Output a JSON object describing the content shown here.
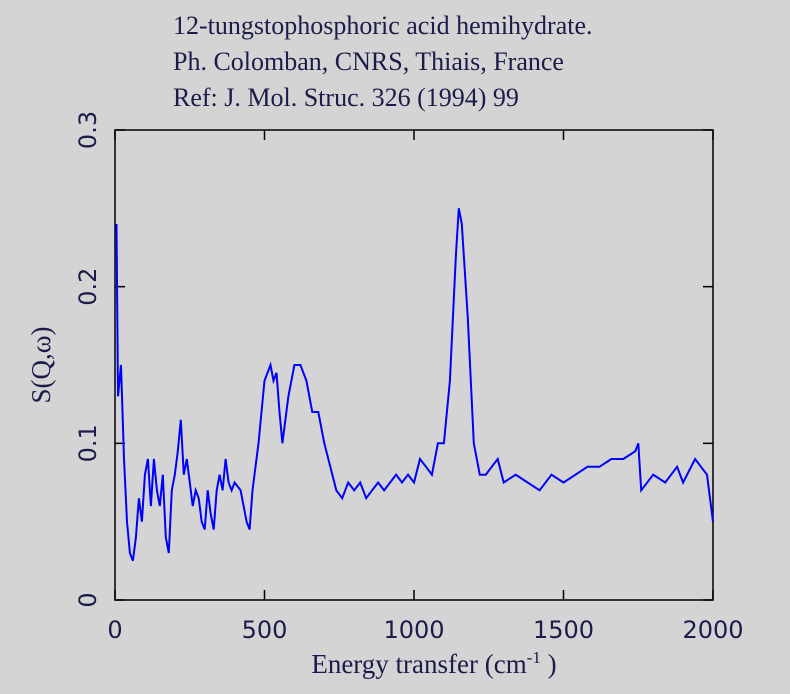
{
  "chart_data": {
    "type": "line",
    "title": [
      "12-tungstophosphoric acid hemihydrate.",
      "Ph. Colomban, CNRS, Thiais, France",
      "Ref: J. Mol. Struc. 326 (1994) 99"
    ],
    "xlabel": [
      "Energy transfer (cm",
      "-1",
      " )"
    ],
    "ylabel": "S(Q,ω)",
    "x": [
      5,
      10,
      20,
      30,
      40,
      50,
      60,
      70,
      80,
      90,
      100,
      110,
      120,
      130,
      140,
      150,
      160,
      170,
      180,
      190,
      200,
      210,
      220,
      230,
      240,
      250,
      260,
      270,
      280,
      290,
      300,
      310,
      320,
      330,
      340,
      350,
      360,
      370,
      380,
      390,
      400,
      420,
      440,
      450,
      460,
      480,
      500,
      520,
      530,
      540,
      550,
      560,
      580,
      600,
      620,
      640,
      660,
      680,
      700,
      720,
      740,
      760,
      780,
      800,
      820,
      840,
      860,
      880,
      900,
      920,
      940,
      960,
      980,
      1000,
      1020,
      1040,
      1060,
      1080,
      1100,
      1120,
      1140,
      1150,
      1160,
      1180,
      1200,
      1220,
      1240,
      1260,
      1280,
      1300,
      1340,
      1380,
      1420,
      1460,
      1500,
      1540,
      1580,
      1620,
      1660,
      1700,
      1740,
      1750,
      1760,
      1800,
      1840,
      1880,
      1900,
      1940,
      1960,
      1980,
      2000
    ],
    "series": [
      {
        "name": "S(Q,ω)",
        "color": "#0000ff",
        "values": [
          0.24,
          0.13,
          0.15,
          0.09,
          0.05,
          0.03,
          0.025,
          0.04,
          0.065,
          0.05,
          0.08,
          0.09,
          0.06,
          0.09,
          0.07,
          0.06,
          0.08,
          0.04,
          0.03,
          0.07,
          0.08,
          0.095,
          0.115,
          0.08,
          0.09,
          0.075,
          0.06,
          0.07,
          0.065,
          0.05,
          0.045,
          0.07,
          0.055,
          0.045,
          0.07,
          0.08,
          0.07,
          0.09,
          0.075,
          0.07,
          0.075,
          0.07,
          0.05,
          0.045,
          0.07,
          0.1,
          0.14,
          0.15,
          0.14,
          0.145,
          0.12,
          0.1,
          0.13,
          0.15,
          0.15,
          0.14,
          0.12,
          0.12,
          0.1,
          0.085,
          0.07,
          0.065,
          0.075,
          0.07,
          0.075,
          0.065,
          0.07,
          0.075,
          0.07,
          0.075,
          0.08,
          0.075,
          0.08,
          0.075,
          0.09,
          0.085,
          0.08,
          0.1,
          0.1,
          0.14,
          0.22,
          0.25,
          0.24,
          0.18,
          0.1,
          0.08,
          0.08,
          0.085,
          0.09,
          0.075,
          0.08,
          0.075,
          0.07,
          0.08,
          0.075,
          0.08,
          0.085,
          0.085,
          0.09,
          0.09,
          0.095,
          0.1,
          0.07,
          0.08,
          0.075,
          0.085,
          0.075,
          0.09,
          0.085,
          0.08,
          0.05
        ]
      }
    ],
    "xlim": [
      0,
      2000
    ],
    "xticks": [
      0,
      500,
      1000,
      1500,
      2000
    ],
    "ylim": [
      0,
      0.3
    ],
    "yticks": [
      0,
      0.1,
      0.2,
      0.3
    ]
  }
}
